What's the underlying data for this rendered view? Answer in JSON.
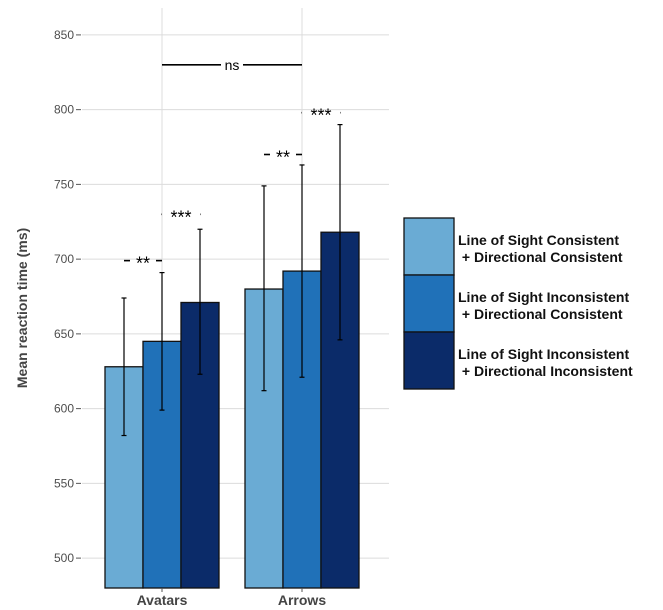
{
  "chart_data": {
    "type": "bar",
    "ylabel": "Mean reaction time (ms)",
    "xlabel": "",
    "ylim": [
      480,
      868
    ],
    "yticks": [
      500,
      550,
      600,
      650,
      700,
      750,
      800,
      850
    ],
    "ytick_labels": [
      "500",
      "550",
      "600",
      "650",
      "700",
      "750",
      "800",
      "850"
    ],
    "categories": [
      "Avatars",
      "Arrows"
    ],
    "grid": true,
    "legend_position": "right",
    "series": [
      {
        "name": "Line of Sight Consistent\n + Directional Consistent",
        "color": "#6aabd4",
        "values": [
          628,
          680
        ],
        "error_low": [
          582,
          612
        ],
        "error_high": [
          674,
          749
        ]
      },
      {
        "name": "Line of Sight Inconsistent\n + Directional Consistent",
        "color": "#2071b8",
        "values": [
          645,
          692
        ],
        "error_low": [
          599,
          621
        ],
        "error_high": [
          691,
          763
        ]
      },
      {
        "name": "Line of Sight Inconsistent\n + Directional Inconsistent",
        "color": "#0b2b69",
        "values": [
          671,
          718
        ],
        "error_low": [
          623,
          646
        ],
        "error_high": [
          720,
          790
        ]
      }
    ],
    "annotations": [
      {
        "text": "**",
        "category": 0,
        "from_series": 0,
        "to_series": 1,
        "y": 699
      },
      {
        "text": "***",
        "category": 0,
        "from_series": 1,
        "to_series": 2,
        "y": 730
      },
      {
        "text": "**",
        "category": 1,
        "from_series": 0,
        "to_series": 1,
        "y": 770
      },
      {
        "text": "***",
        "category": 1,
        "from_series": 1,
        "to_series": 2,
        "y": 798
      },
      {
        "text": "ns",
        "from_category": 0,
        "to_category": 1,
        "y": 830
      }
    ]
  }
}
